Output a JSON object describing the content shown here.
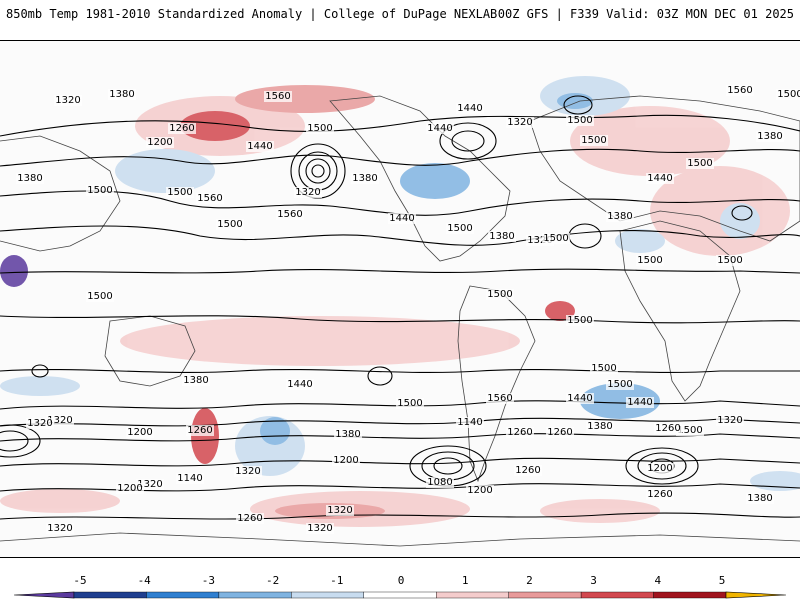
{
  "header": {
    "title_left": "850mb Temp 1981-2010 Standardized Anomaly | College of DuPage NEXLAB",
    "title_right": "00Z GFS | F339 Valid: 03Z MON DEC 01 2025"
  },
  "colorbar": {
    "ticks": [
      "-5",
      "-4",
      "-3",
      "-2",
      "-1",
      "0",
      "1",
      "2",
      "3",
      "4",
      "5"
    ],
    "colors": [
      "#5b3a9e",
      "#1f3f8f",
      "#2f7fd0",
      "#7fb3e0",
      "#c8dcef",
      "#ffffff",
      "#f4cccc",
      "#e89a9a",
      "#d2484f",
      "#a0141e",
      "#f0b400"
    ]
  },
  "map": {
    "contour_labels": [
      "1380",
      "1320",
      "1560",
      "1440",
      "1500",
      "1260",
      "1200",
      "1440",
      "1320",
      "1560",
      "1500",
      "1380",
      "1440",
      "1320",
      "1500",
      "1380",
      "1500",
      "1500",
      "1560",
      "1500",
      "1440",
      "1500",
      "1380",
      "1320",
      "1380",
      "1440",
      "1500",
      "1560",
      "1500",
      "1500",
      "1500",
      "1500",
      "1500",
      "1500",
      "1500",
      "1380",
      "1440",
      "1500",
      "1560",
      "1500",
      "1320",
      "1140",
      "1200",
      "1260",
      "1380",
      "1440",
      "1500",
      "1320",
      "1380",
      "1260",
      "1200",
      "1320",
      "1080",
      "1200",
      "1260",
      "1200",
      "1320",
      "1260",
      "1320",
      "1380",
      "1260",
      "1320",
      "1200",
      "1140",
      "1320",
      "1260",
      "1260",
      "1500",
      "1440",
      "1320",
      "1380"
    ]
  }
}
